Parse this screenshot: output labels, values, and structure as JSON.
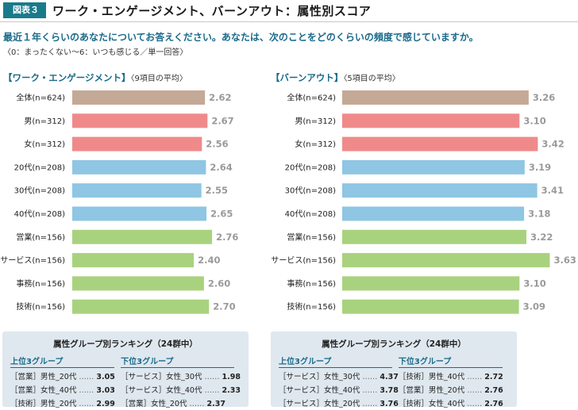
{
  "header": {
    "badge": "図表３",
    "title": "ワーク・エンゲージメント、バーンアウト：属性別スコア"
  },
  "question": "最近１年くらいのあなたについてお答えください。あなたは、次のことをどのくらいの頻度で感じていますか。",
  "scale_note": "〈0：まったくない〜6：いつも感じる／単一回答〉",
  "colors": {
    "all": "#c4a996",
    "gender": "#f08a8a",
    "age": "#8ec6e3",
    "job": "#a9d27e",
    "accent": "#1a6a8a"
  },
  "chart_data": [
    {
      "type": "bar",
      "orientation": "horizontal",
      "title": "【ワーク・エンゲージメント】",
      "subtitle": "〈9項目の平均〉",
      "categories": [
        "全体(n=624)",
        "男(n=312)",
        "女(n=312)",
        "20代(n=208)",
        "30代(n=208)",
        "40代(n=208)",
        "営業(n=156)",
        "サービス(n=156)",
        "事務(n=156)",
        "技術(n=156)"
      ],
      "values": [
        2.62,
        2.67,
        2.56,
        2.64,
        2.55,
        2.65,
        2.76,
        2.4,
        2.6,
        2.7
      ],
      "value_labels": [
        "2.62",
        "2.67",
        "2.56",
        "2.64",
        "2.55",
        "2.65",
        "2.76",
        "2.40",
        "2.60",
        "2.70"
      ],
      "groups": [
        "all",
        "gender",
        "gender",
        "age",
        "age",
        "age",
        "job",
        "job",
        "job",
        "job"
      ],
      "xlim": [
        0,
        2.9
      ]
    },
    {
      "type": "bar",
      "orientation": "horizontal",
      "title": "【バーンアウト】",
      "subtitle": "〈5項目の平均〉",
      "categories": [
        "全体(n=624)",
        "男(n=312)",
        "女(n=312)",
        "20代(n=208)",
        "30代(n=208)",
        "40代(n=208)",
        "営業(n=156)",
        "サービス(n=156)",
        "事務(n=156)",
        "技術(n=156)"
      ],
      "values": [
        3.26,
        3.1,
        3.42,
        3.19,
        3.41,
        3.18,
        3.22,
        3.63,
        3.1,
        3.09
      ],
      "value_labels": [
        "3.26",
        "3.10",
        "3.42",
        "3.19",
        "3.41",
        "3.18",
        "3.22",
        "3.63",
        "3.10",
        "3.09"
      ],
      "groups": [
        "all",
        "gender",
        "gender",
        "age",
        "age",
        "age",
        "job",
        "job",
        "job",
        "job"
      ],
      "xlim": [
        0,
        3.72
      ]
    }
  ],
  "rankings": [
    {
      "title": "属性グループ別ランキング（24群中）",
      "top_head": "上位3グループ",
      "bottom_head": "下位3グループ",
      "top": [
        {
          "job": "［営業］",
          "group": "男性_20代",
          "dots": "……",
          "value": "3.05"
        },
        {
          "job": "［営業］",
          "group": "女性_40代",
          "dots": "……",
          "value": "3.03"
        },
        {
          "job": "［技術］",
          "group": "男性_20代",
          "dots": "……",
          "value": "2.99"
        }
      ],
      "bottom": [
        {
          "job": "［サービス］",
          "group": "女性_30代",
          "dots": "……",
          "value": "1.98"
        },
        {
          "job": "［サービス］",
          "group": "女性_40代",
          "dots": "……",
          "value": "2.33"
        },
        {
          "job": "［営業］",
          "group": "女性_20代",
          "dots": "……",
          "value": "2.37"
        }
      ]
    },
    {
      "title": "属性グループ別ランキング（24群中）",
      "top_head": "上位3グループ",
      "bottom_head": "下位3グループ",
      "top": [
        {
          "job": "［サービス］",
          "group": "女性_30代",
          "dots": "……",
          "value": "4.37"
        },
        {
          "job": "［サービス］",
          "group": "女性_40代",
          "dots": "……",
          "value": "3.78"
        },
        {
          "job": "［サービス］",
          "group": "女性_20代",
          "dots": "……",
          "value": "3.76"
        }
      ],
      "bottom": [
        {
          "job": "［技術］",
          "group": "男性_40代",
          "dots": "……",
          "value": "2.72"
        },
        {
          "job": "［営業］",
          "group": "男性_20代",
          "dots": "……",
          "value": "2.76"
        },
        {
          "job": "［技術］",
          "group": "女性_40代",
          "dots": "……",
          "value": "2.76"
        }
      ]
    }
  ]
}
